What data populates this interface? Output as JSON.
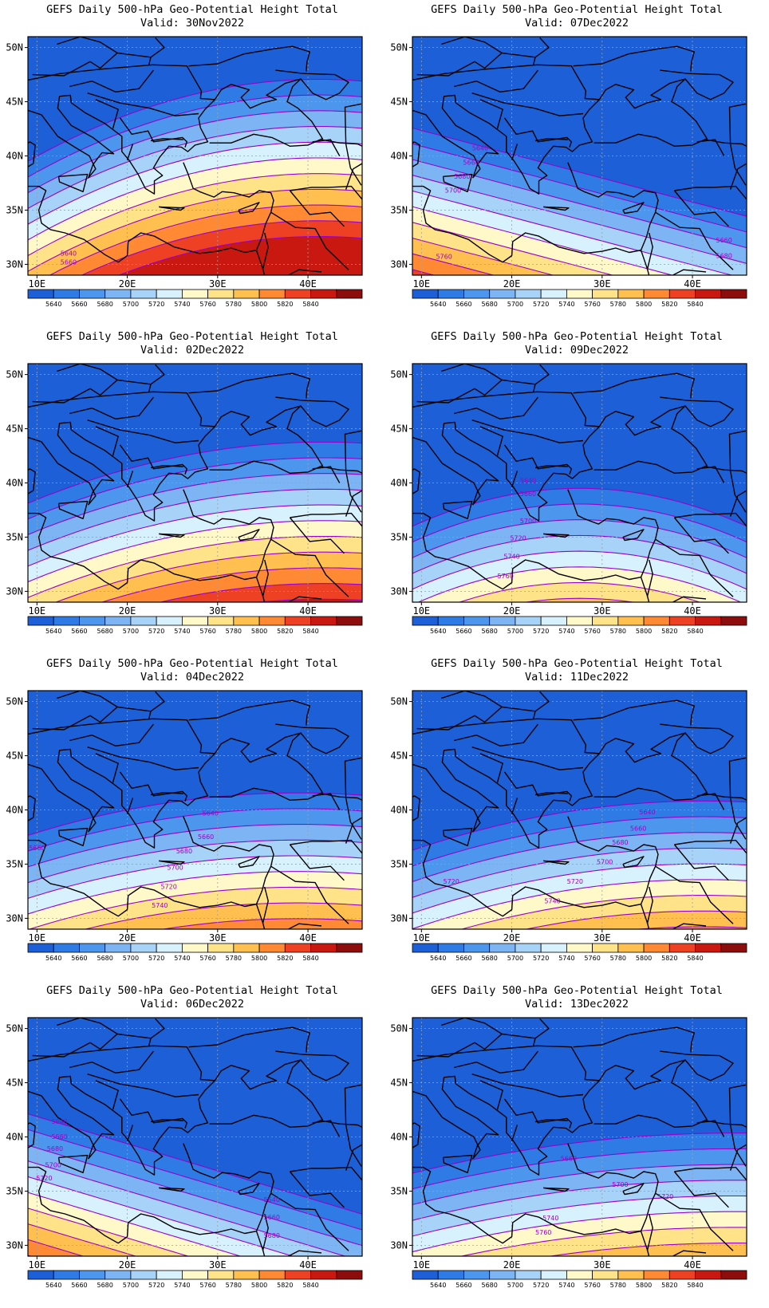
{
  "panels": [
    {
      "title": "GEFS Daily 500-hPa Geo-Potential Height Total",
      "valid": "Valid: 30Nov2022",
      "shift": -1.2,
      "tilt": 0.2,
      "bend": 2.5,
      "labels": [
        {
          "t": "5640",
          "x": 13.5,
          "y": 30.8
        },
        {
          "t": "5660",
          "x": 13.5,
          "y": 30.0
        }
      ]
    },
    {
      "title": "GEFS Daily 500-hPa Geo-Potential Height Total",
      "valid": "Valid: 07Dec2022",
      "shift": 6.0,
      "tilt": -0.22,
      "bend": 0,
      "labels": [
        {
          "t": "5640",
          "x": 16.5,
          "y": 40.5
        },
        {
          "t": "5660",
          "x": 15.5,
          "y": 39.2
        },
        {
          "t": "5680",
          "x": 14.5,
          "y": 37.9
        },
        {
          "t": "5700",
          "x": 13.5,
          "y": 36.6
        },
        {
          "t": "5760",
          "x": 12.5,
          "y": 30.5
        },
        {
          "t": "5660",
          "x": 43.5,
          "y": 32.0
        },
        {
          "t": "5680",
          "x": 43.5,
          "y": 30.6
        }
      ]
    },
    {
      "title": "GEFS Daily 500-hPa Geo-Potential Height Total",
      "valid": "Valid: 02Dec2022",
      "shift": 1.8,
      "tilt": 0.15,
      "bend": 1.8,
      "labels": []
    },
    {
      "title": "GEFS Daily 500-hPa Geo-Potential Height Total",
      "valid": "Valid: 09Dec2022",
      "shift": 5.0,
      "tilt": 0.0,
      "bend": 3.5,
      "labels": [
        {
          "t": "5640",
          "x": 21.8,
          "y": 40.0
        },
        {
          "t": "5660",
          "x": 21.8,
          "y": 38.8
        },
        {
          "t": "5700",
          "x": 21.8,
          "y": 36.3
        },
        {
          "t": "5720",
          "x": 20.7,
          "y": 34.7
        },
        {
          "t": "5740",
          "x": 20.0,
          "y": 33.0
        },
        {
          "t": "5760",
          "x": 19.3,
          "y": 31.2
        }
      ]
    },
    {
      "title": "GEFS Daily 500-hPa Geo-Potential Height Total",
      "valid": "Valid: 04Dec2022",
      "shift": 3.5,
      "tilt": 0.1,
      "bend": 1.5,
      "labels": [
        {
          "t": "5640",
          "x": 29.2,
          "y": 39.5
        },
        {
          "t": "5660",
          "x": 28.7,
          "y": 37.3
        },
        {
          "t": "5680",
          "x": 26.3,
          "y": 36.0
        },
        {
          "t": "5700",
          "x": 25.3,
          "y": 34.5
        },
        {
          "t": "5720",
          "x": 24.6,
          "y": 32.7
        },
        {
          "t": "5740",
          "x": 23.6,
          "y": 31.0
        },
        {
          "t": "5660",
          "x": 10.0,
          "y": 36.3
        }
      ]
    },
    {
      "title": "GEFS Daily 500-hPa Geo-Potential Height Total",
      "valid": "Valid: 11Dec2022",
      "shift": 4.5,
      "tilt": 0.12,
      "bend": 1.5,
      "labels": [
        {
          "t": "5640",
          "x": 35.0,
          "y": 39.6
        },
        {
          "t": "5660",
          "x": 34.0,
          "y": 38.1
        },
        {
          "t": "5680",
          "x": 32.0,
          "y": 36.8
        },
        {
          "t": "5700",
          "x": 30.3,
          "y": 35.0
        },
        {
          "t": "5720",
          "x": 27.0,
          "y": 33.2
        },
        {
          "t": "5740",
          "x": 24.5,
          "y": 31.4
        },
        {
          "t": "5720",
          "x": 13.3,
          "y": 33.2
        }
      ]
    },
    {
      "title": "GEFS Daily 500-hPa Geo-Potential Height Total",
      "valid": "Valid: 06Dec2022",
      "shift": 7.0,
      "tilt": -0.25,
      "bend": 0,
      "labels": [
        {
          "t": "5640",
          "x": 12.5,
          "y": 41.2
        },
        {
          "t": "5660",
          "x": 12.5,
          "y": 39.8
        },
        {
          "t": "5680",
          "x": 12.0,
          "y": 38.7
        },
        {
          "t": "5700",
          "x": 11.8,
          "y": 37.2
        },
        {
          "t": "5720",
          "x": 10.8,
          "y": 36.0
        },
        {
          "t": "5640",
          "x": 36.0,
          "y": 34.0
        },
        {
          "t": "5660",
          "x": 36.0,
          "y": 32.4
        },
        {
          "t": "5680",
          "x": 36.0,
          "y": 30.7
        }
      ]
    },
    {
      "title": "GEFS Daily 500-hPa Geo-Potential Height Total",
      "valid": "Valid: 13Dec2022",
      "shift": 5.0,
      "tilt": 0.1,
      "bend": 1.0,
      "labels": [
        {
          "t": "5660",
          "x": 26.3,
          "y": 37.8
        },
        {
          "t": "5700",
          "x": 32.0,
          "y": 35.4
        },
        {
          "t": "5720",
          "x": 37.0,
          "y": 34.3
        },
        {
          "t": "5740",
          "x": 24.3,
          "y": 32.3
        },
        {
          "t": "5760",
          "x": 23.5,
          "y": 31.0
        }
      ]
    }
  ],
  "axes": {
    "lat_ticks": [
      "30N",
      "35N",
      "40N",
      "45N",
      "50N"
    ],
    "lon_ticks": [
      "10E",
      "20E",
      "30E",
      "40E"
    ],
    "lon_range": [
      9,
      46
    ],
    "lat_range": [
      29,
      51
    ]
  },
  "colorbar": {
    "labels": [
      "5640",
      "5660",
      "5680",
      "5700",
      "5720",
      "5740",
      "5760",
      "5780",
      "5800",
      "5820",
      "5840"
    ],
    "colors": [
      "#1c5fd7",
      "#2f7be6",
      "#4d96ee",
      "#7db4f4",
      "#a8d3f9",
      "#d7f1fd",
      "#fff8c8",
      "#ffe389",
      "#ffc04f",
      "#ff8a33",
      "#ee4022",
      "#c8180f",
      "#8c0d0b"
    ]
  },
  "colors": {
    "contour": "#9a00cc",
    "border": "#000000",
    "grid": "#a0a0a0"
  }
}
